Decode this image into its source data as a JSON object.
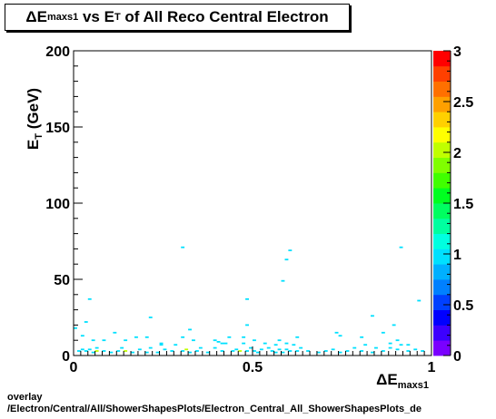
{
  "title": {
    "symbol": "ΔE",
    "subscript": "maxs1",
    "middle": " vs E",
    "subscript2": "T",
    "rest": " of All Reco Central Electron"
  },
  "footer": {
    "line1": "overlay",
    "line2": "/Electron/Central/All/ShowerShapesPlots/Electron_Central_All_ShowerShapesPlots_de"
  },
  "chart_data": {
    "type": "heatmap",
    "xlabel": "ΔE_maxs1",
    "ylabel": "E_T (GeV)",
    "xlim": [
      0,
      1
    ],
    "ylim": [
      0,
      200
    ],
    "x_ticks": [
      "0",
      "0.5",
      "1"
    ],
    "y_ticks": [
      "0",
      "50",
      "100",
      "150",
      "200"
    ],
    "z_range": [
      0,
      3
    ],
    "z_ticks": [
      "0",
      "0.5",
      "1",
      "1.5",
      "2",
      "2.5",
      "3"
    ],
    "palette": [
      "#7a00ff",
      "#3c00ff",
      "#0000ff",
      "#0040ff",
      "#0080ff",
      "#00b0ff",
      "#00e0ff",
      "#00ffe0",
      "#00ffa0",
      "#00ff60",
      "#00ff20",
      "#40ff00",
      "#80ff00",
      "#c0ff00",
      "#ffff00",
      "#ffd000",
      "#ffa000",
      "#ff7000",
      "#ff4000",
      "#ff0000"
    ],
    "cells": [
      {
        "x": 0.015,
        "y": 3,
        "z": 1
      },
      {
        "x": 0.025,
        "y": 4,
        "z": 1
      },
      {
        "x": 0.035,
        "y": 3,
        "z": 1
      },
      {
        "x": 0.045,
        "y": 4,
        "z": 1
      },
      {
        "x": 0.055,
        "y": 2,
        "z": 1
      },
      {
        "x": 0.065,
        "y": 5,
        "z": 1
      },
      {
        "x": 0.065,
        "y": 3,
        "z": 2
      },
      {
        "x": 0.085,
        "y": 3,
        "z": 1
      },
      {
        "x": 0.105,
        "y": 2,
        "z": 1
      },
      {
        "x": 0.125,
        "y": 3,
        "z": 1
      },
      {
        "x": 0.135,
        "y": 5,
        "z": 1
      },
      {
        "x": 0.145,
        "y": 3,
        "z": 2
      },
      {
        "x": 0.165,
        "y": 2,
        "z": 1
      },
      {
        "x": 0.185,
        "y": 4,
        "z": 1
      },
      {
        "x": 0.205,
        "y": 2,
        "z": 1
      },
      {
        "x": 0.215,
        "y": 5,
        "z": 1
      },
      {
        "x": 0.235,
        "y": 2,
        "z": 1
      },
      {
        "x": 0.245,
        "y": 7,
        "z": 1
      },
      {
        "x": 0.255,
        "y": 4,
        "z": 1
      },
      {
        "x": 0.275,
        "y": 3,
        "z": 1
      },
      {
        "x": 0.285,
        "y": 7,
        "z": 1
      },
      {
        "x": 0.305,
        "y": 3,
        "z": 1
      },
      {
        "x": 0.315,
        "y": 4,
        "z": 2
      },
      {
        "x": 0.325,
        "y": 2,
        "z": 1
      },
      {
        "x": 0.345,
        "y": 3,
        "z": 1
      },
      {
        "x": 0.355,
        "y": 5,
        "z": 1
      },
      {
        "x": 0.375,
        "y": 2,
        "z": 1
      },
      {
        "x": 0.395,
        "y": 5,
        "z": 1
      },
      {
        "x": 0.405,
        "y": 9,
        "z": 1
      },
      {
        "x": 0.415,
        "y": 3,
        "z": 1
      },
      {
        "x": 0.425,
        "y": 8,
        "z": 1
      },
      {
        "x": 0.445,
        "y": 3,
        "z": 1
      },
      {
        "x": 0.455,
        "y": 4,
        "z": 1
      },
      {
        "x": 0.465,
        "y": 3,
        "z": 2
      },
      {
        "x": 0.485,
        "y": 3,
        "z": 1
      },
      {
        "x": 0.495,
        "y": 5,
        "z": 1
      },
      {
        "x": 0.505,
        "y": 3,
        "z": 1
      },
      {
        "x": 0.515,
        "y": 2,
        "z": 1
      },
      {
        "x": 0.525,
        "y": 4,
        "z": 1
      },
      {
        "x": 0.545,
        "y": 5,
        "z": 1
      },
      {
        "x": 0.555,
        "y": 3,
        "z": 1
      },
      {
        "x": 0.565,
        "y": 2,
        "z": 1
      },
      {
        "x": 0.575,
        "y": 4,
        "z": 1
      },
      {
        "x": 0.585,
        "y": 2,
        "z": 1
      },
      {
        "x": 0.595,
        "y": 4,
        "z": 1
      },
      {
        "x": 0.605,
        "y": 3,
        "z": 1
      },
      {
        "x": 0.615,
        "y": 7,
        "z": 1
      },
      {
        "x": 0.625,
        "y": 3,
        "z": 1
      },
      {
        "x": 0.635,
        "y": 5,
        "z": 1
      },
      {
        "x": 0.655,
        "y": 3,
        "z": 1
      },
      {
        "x": 0.685,
        "y": 2,
        "z": 1
      },
      {
        "x": 0.705,
        "y": 3,
        "z": 1
      },
      {
        "x": 0.725,
        "y": 4,
        "z": 1
      },
      {
        "x": 0.745,
        "y": 2,
        "z": 1
      },
      {
        "x": 0.765,
        "y": 3,
        "z": 1
      },
      {
        "x": 0.785,
        "y": 5,
        "z": 1
      },
      {
        "x": 0.805,
        "y": 3,
        "z": 1
      },
      {
        "x": 0.815,
        "y": 7,
        "z": 1
      },
      {
        "x": 0.835,
        "y": 2,
        "z": 1
      },
      {
        "x": 0.845,
        "y": 5,
        "z": 1
      },
      {
        "x": 0.865,
        "y": 3,
        "z": 1
      },
      {
        "x": 0.885,
        "y": 5,
        "z": 1
      },
      {
        "x": 0.905,
        "y": 4,
        "z": 1
      },
      {
        "x": 0.915,
        "y": 7,
        "z": 1
      },
      {
        "x": 0.935,
        "y": 3,
        "z": 1
      },
      {
        "x": 0.955,
        "y": 4,
        "z": 1
      },
      {
        "x": 0.975,
        "y": 3,
        "z": 1
      },
      {
        "x": 0.005,
        "y": 18,
        "z": 1
      },
      {
        "x": 0.025,
        "y": 13,
        "z": 1
      },
      {
        "x": 0.035,
        "y": 22,
        "z": 1
      },
      {
        "x": 0.045,
        "y": 37,
        "z": 1
      },
      {
        "x": 0.055,
        "y": 10,
        "z": 1
      },
      {
        "x": 0.085,
        "y": 10,
        "z": 1
      },
      {
        "x": 0.115,
        "y": 15,
        "z": 1
      },
      {
        "x": 0.145,
        "y": 10,
        "z": 1
      },
      {
        "x": 0.175,
        "y": 12,
        "z": 1
      },
      {
        "x": 0.205,
        "y": 12,
        "z": 1
      },
      {
        "x": 0.215,
        "y": 25,
        "z": 1
      },
      {
        "x": 0.245,
        "y": 8,
        "z": 1
      },
      {
        "x": 0.305,
        "y": 12,
        "z": 1
      },
      {
        "x": 0.325,
        "y": 17,
        "z": 1
      },
      {
        "x": 0.335,
        "y": 10,
        "z": 1
      },
      {
        "x": 0.395,
        "y": 10,
        "z": 1
      },
      {
        "x": 0.415,
        "y": 8,
        "z": 1
      },
      {
        "x": 0.435,
        "y": 12,
        "z": 1
      },
      {
        "x": 0.475,
        "y": 8,
        "z": 1
      },
      {
        "x": 0.475,
        "y": 12,
        "z": 1
      },
      {
        "x": 0.485,
        "y": 20,
        "z": 1
      },
      {
        "x": 0.485,
        "y": 37,
        "z": 1
      },
      {
        "x": 0.505,
        "y": 10,
        "z": 1
      },
      {
        "x": 0.535,
        "y": 8,
        "z": 1
      },
      {
        "x": 0.565,
        "y": 7,
        "z": 1
      },
      {
        "x": 0.575,
        "y": 10,
        "z": 1
      },
      {
        "x": 0.595,
        "y": 8,
        "z": 1
      },
      {
        "x": 0.625,
        "y": 12,
        "z": 1
      },
      {
        "x": 0.735,
        "y": 15,
        "z": 1
      },
      {
        "x": 0.745,
        "y": 13,
        "z": 1
      },
      {
        "x": 0.805,
        "y": 12,
        "z": 1
      },
      {
        "x": 0.835,
        "y": 26,
        "z": 1
      },
      {
        "x": 0.865,
        "y": 15,
        "z": 1
      },
      {
        "x": 0.885,
        "y": 8,
        "z": 1
      },
      {
        "x": 0.895,
        "y": 20,
        "z": 1
      },
      {
        "x": 0.905,
        "y": 10,
        "z": 1
      },
      {
        "x": 0.935,
        "y": 7,
        "z": 1
      },
      {
        "x": 0.965,
        "y": 36,
        "z": 1
      },
      {
        "x": 0.305,
        "y": 71,
        "z": 1
      },
      {
        "x": 0.585,
        "y": 49,
        "z": 1
      },
      {
        "x": 0.595,
        "y": 63,
        "z": 1
      },
      {
        "x": 0.605,
        "y": 69,
        "z": 1
      },
      {
        "x": 0.915,
        "y": 71,
        "z": 1
      }
    ]
  }
}
